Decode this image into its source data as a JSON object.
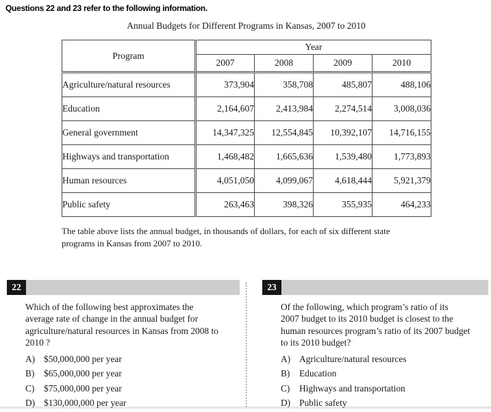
{
  "page": {
    "instructions": "Questions 22 and 23 refer to the following information.",
    "table_title": "Annual Budgets for Different Programs in Kansas, 2007 to 2010",
    "caption": "The table above lists the annual budget, in thousands of dollars, for each of six different state\nprograms in Kansas from 2007 to 2010."
  },
  "colors": {
    "header_bar_gray": "#cdcdcd",
    "badge_black": "#161616",
    "table_border": "#454545"
  },
  "table": {
    "program_header": "Program",
    "year_header": "Year",
    "years": [
      "2007",
      "2008",
      "2009",
      "2010"
    ],
    "rows": [
      {
        "program": "Agriculture/natural resources",
        "values": [
          "373,904",
          "358,708",
          "485,807",
          "488,106"
        ]
      },
      {
        "program": "Education",
        "values": [
          "2,164,607",
          "2,413,984",
          "2,274,514",
          "3,008,036"
        ]
      },
      {
        "program": "General government",
        "values": [
          "14,347,325",
          "12,554,845",
          "10,392,107",
          "14,716,155"
        ]
      },
      {
        "program": "Highways and transportation",
        "values": [
          "1,468,482",
          "1,665,636",
          "1,539,480",
          "1,773,893"
        ]
      },
      {
        "program": "Human resources",
        "values": [
          "4,051,050",
          "4,099,067",
          "4,618,444",
          "5,921,379"
        ]
      },
      {
        "program": "Public safety",
        "values": [
          "263,463",
          "398,326",
          "355,935",
          "464,233"
        ]
      }
    ]
  },
  "questions": [
    {
      "number": "22",
      "text": "Which of the following best approximates the\naverage rate of change in the annual budget for\nagriculture/natural resources in Kansas from 2008 to\n2010 ?",
      "choices": [
        {
          "letter": "A)",
          "text": "$50,000,000 per year"
        },
        {
          "letter": "B)",
          "text": "$65,000,000 per year"
        },
        {
          "letter": "C)",
          "text": "$75,000,000 per year"
        },
        {
          "letter": "D)",
          "text": "$130,000,000 per year"
        }
      ]
    },
    {
      "number": "23",
      "text": "Of the following, which program’s ratio of its\n2007 budget to its 2010 budget is closest to the\nhuman resources program’s ratio of its 2007 budget\nto its 2010 budget?",
      "choices": [
        {
          "letter": "A)",
          "text": "Agriculture/natural resources"
        },
        {
          "letter": "B)",
          "text": "Education"
        },
        {
          "letter": "C)",
          "text": "Highways and transportation"
        },
        {
          "letter": "D)",
          "text": "Public safety"
        }
      ]
    }
  ]
}
